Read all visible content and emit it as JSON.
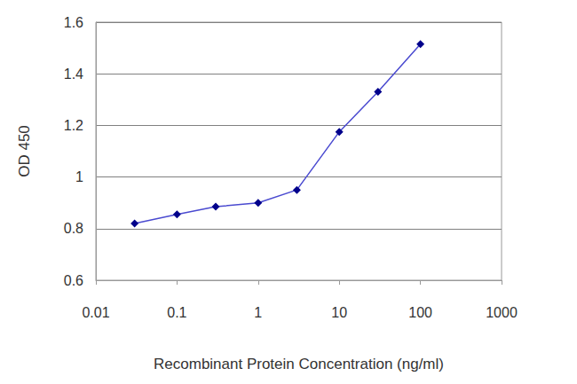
{
  "chart_data": {
    "type": "line",
    "x_label": "Recombinant Protein Concentration (ng/ml)",
    "y_label": "OD 450",
    "x": [
      0.03,
      0.1,
      0.3,
      1,
      3,
      10,
      30,
      100
    ],
    "values": [
      0.82,
      0.855,
      0.885,
      0.9,
      0.95,
      1.175,
      1.33,
      1.515
    ],
    "color": "#00008b",
    "marker": "diamond",
    "log": "x",
    "xlim": [
      0.01,
      1000
    ],
    "xticks": [
      0.01,
      0.1,
      1,
      10,
      100,
      1000
    ],
    "ylim": [
      0.6,
      1.6
    ],
    "yticks": [
      0.6,
      0.8,
      1,
      1.2,
      1.4,
      1.6
    ],
    "grid": true
  }
}
